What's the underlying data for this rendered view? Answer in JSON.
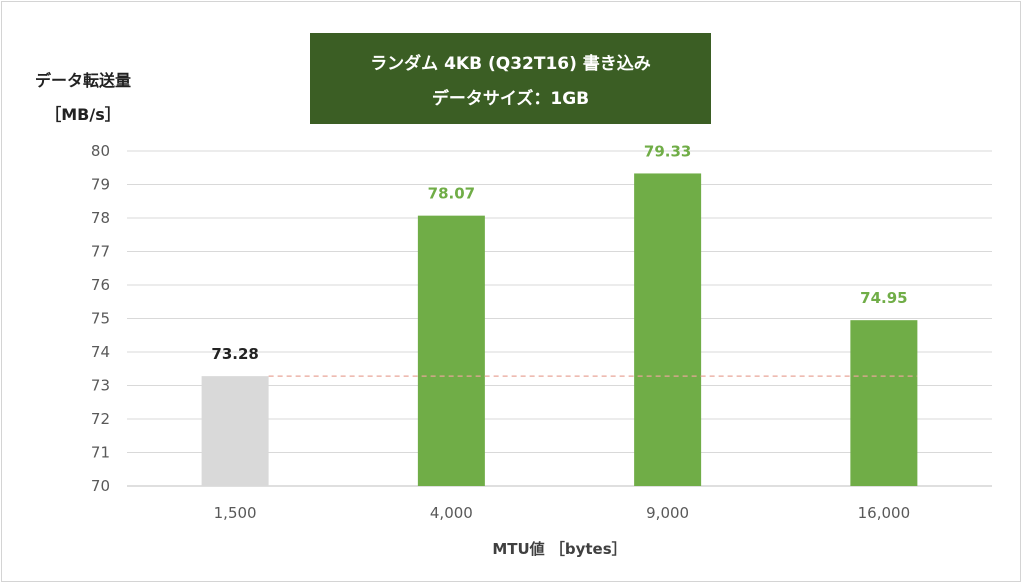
{
  "chart_data": {
    "type": "bar",
    "title_lines": [
      "ランダム 4KB (Q32T16) 書き込み",
      "データサイズ：1GB"
    ],
    "ylabel_lines": [
      "データ転送量",
      "［MB/s］"
    ],
    "xlabel": "MTU値 ［bytes］",
    "categories": [
      "1,500",
      "4,000",
      "9,000",
      "16,000"
    ],
    "values": [
      73.28,
      78.07,
      79.33,
      74.95
    ],
    "data_labels": [
      "73.28",
      "78.07",
      "79.33",
      "74.95"
    ],
    "ylim": [
      70,
      80
    ],
    "yticks": [
      "70",
      "71",
      "72",
      "73",
      "74",
      "75",
      "76",
      "77",
      "78",
      "79",
      "80"
    ],
    "grid": true,
    "baseline_value": 73.28,
    "colors": {
      "baseline_bar": "#d9d9d9",
      "bar": "#70ad47",
      "baseline_label": "#222222",
      "label": "#70ad47",
      "reference_line": "#e8a598",
      "title_bg": "#3b5e24"
    }
  }
}
